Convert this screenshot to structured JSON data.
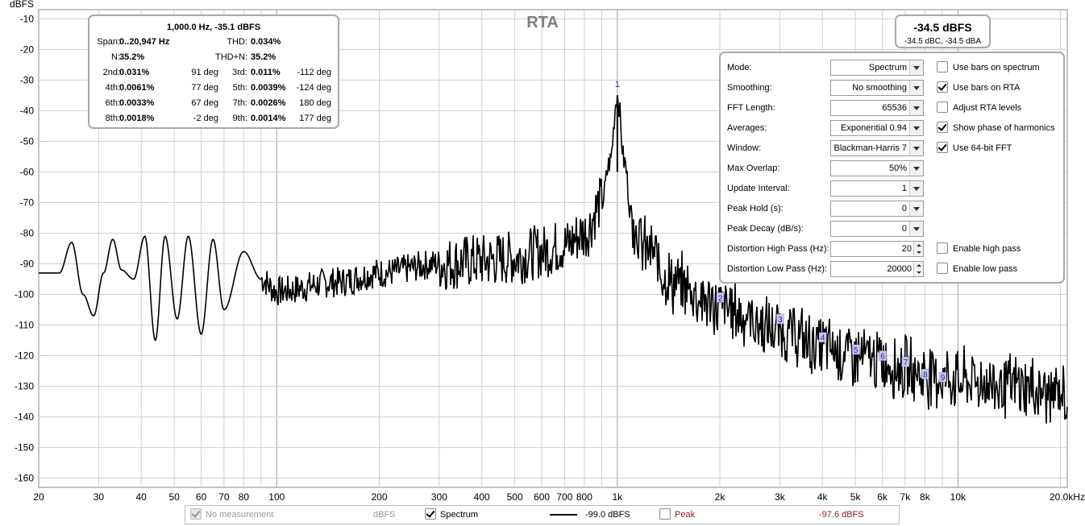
{
  "plot": {
    "title": "RTA",
    "y_unit": "dBFS",
    "y_ticks": [
      "-10",
      "-20",
      "-30",
      "-40",
      "-50",
      "-60",
      "-70",
      "-80",
      "-90",
      "-100",
      "-110",
      "-120",
      "-130",
      "-140",
      "-150",
      "-160"
    ],
    "x_ticks": [
      "20",
      "30",
      "40",
      "50",
      "60",
      "70",
      "80",
      "100",
      "200",
      "300",
      "400",
      "500",
      "600",
      "700",
      "800",
      "1k",
      "2k",
      "3k",
      "4k",
      "5k",
      "6k",
      "7k",
      "8k",
      "10k",
      "20.0kHz"
    ],
    "harmonic_markers": [
      "1",
      "2",
      "3",
      "4",
      "5",
      "6",
      "7",
      "8",
      "9"
    ],
    "trace_color": "#000000",
    "grid_color": "#d0d0d0",
    "title_color": "#808080"
  },
  "chart_data": {
    "type": "line",
    "title": "RTA",
    "xlabel": "",
    "ylabel": "dBFS",
    "xscale": "log",
    "xlim": [
      20,
      20947
    ],
    "ylim": [
      -163,
      -7
    ],
    "grid": true,
    "series": [
      {
        "name": "Spectrum",
        "x": [
          20,
          23,
          25,
          27,
          29,
          31,
          33,
          35,
          38,
          41,
          44,
          47,
          51,
          55,
          60,
          65,
          70,
          80,
          90,
          100,
          150,
          200,
          300,
          400,
          500,
          600,
          700,
          800,
          900,
          950,
          1000,
          1050,
          1100,
          1200,
          1500,
          2000,
          3000,
          4000,
          5000,
          6000,
          7000,
          8000,
          9000,
          10000,
          15000,
          20000
        ],
        "y": [
          -93,
          -93,
          -83,
          -100,
          -107,
          -93,
          -82,
          -92,
          -95,
          -81,
          -115,
          -81,
          -108,
          -81,
          -113,
          -82,
          -105,
          -86,
          -95,
          -99,
          -96,
          -93,
          -90,
          -89,
          -88,
          -86,
          -84,
          -80,
          -70,
          -57,
          -35,
          -57,
          -74,
          -85,
          -97,
          -104,
          -112,
          -117,
          -120,
          -122,
          -124,
          -126,
          -127,
          -128,
          -130,
          -133
        ]
      }
    ],
    "harmonics": [
      {
        "label": "1",
        "x": 1000,
        "y": -35.1
      },
      {
        "label": "2",
        "x": 2000,
        "y": -101
      },
      {
        "label": "3",
        "x": 3000,
        "y": -108
      },
      {
        "label": "4",
        "x": 4000,
        "y": -114
      },
      {
        "label": "5",
        "x": 5000,
        "y": -118
      },
      {
        "label": "6",
        "x": 6000,
        "y": -120
      },
      {
        "label": "7",
        "x": 7000,
        "y": -122
      },
      {
        "label": "8",
        "x": 8000,
        "y": -126
      },
      {
        "label": "9",
        "x": 9000,
        "y": -127
      }
    ]
  },
  "info": {
    "header": "1,000.0 Hz, -35.1 dBFS",
    "span_label": "Span:",
    "span_value": "0..20,947 Hz",
    "thd_label": "THD:",
    "thd_value": "0.034%",
    "n_label": "N:",
    "n_value": "35.2%",
    "thdn_label": "THD+N:",
    "thdn_value": "35.2%",
    "harmonics": [
      {
        "l1": "2nd:",
        "v1": "0.031%",
        "p1": "91 deg",
        "l2": "3rd:",
        "v2": "0.011%",
        "p2": "-112 deg"
      },
      {
        "l1": "4th:",
        "v1": "0.0061%",
        "p1": "77 deg",
        "l2": "5th:",
        "v2": "0.0039%",
        "p2": "-124 deg"
      },
      {
        "l1": "6th:",
        "v1": "0.0033%",
        "p1": "67 deg",
        "l2": "7th:",
        "v2": "0.0026%",
        "p2": "180 deg"
      },
      {
        "l1": "8th:",
        "v1": "0.0018%",
        "p1": "-2 deg",
        "l2": "9th:",
        "v2": "0.0014%",
        "p2": "177 deg"
      }
    ]
  },
  "level": {
    "main": "-34.5 dBFS",
    "sub": "-34.5 dBC, -34.5 dBA"
  },
  "settings": {
    "mode": {
      "label": "Mode:",
      "value": "Spectrum"
    },
    "smoothing": {
      "label": "Smoothing:",
      "value": "No  smoothing"
    },
    "fft_length": {
      "label": "FFT Length:",
      "value": "65536"
    },
    "averages": {
      "label": "Averages:",
      "value": "Exponential 0.94"
    },
    "window": {
      "label": "Window:",
      "value": "Blackman-Harris 7"
    },
    "max_overlap": {
      "label": "Max Overlap:",
      "value": "50%"
    },
    "update_interval": {
      "label": "Update Interval:",
      "value": "1"
    },
    "peak_hold": {
      "label": "Peak Hold (s):",
      "value": "0"
    },
    "peak_decay": {
      "label": "Peak Decay (dB/s):",
      "value": "0"
    },
    "dist_high": {
      "label": "Distortion High Pass (Hz):",
      "value": "20"
    },
    "dist_low": {
      "label": "Distortion Low Pass (Hz):",
      "value": "20000"
    },
    "checks": {
      "bars_spectrum": {
        "label": "Use bars on spectrum",
        "checked": false
      },
      "bars_rta": {
        "label": "Use bars on RTA",
        "checked": true
      },
      "adjust_rta": {
        "label": "Adjust RTA levels",
        "checked": false
      },
      "show_phase": {
        "label": "Show phase of harmonics",
        "checked": true
      },
      "fft64": {
        "label": "Use 64-bit FFT",
        "checked": true
      },
      "high_pass": {
        "label": "Enable high pass",
        "checked": false
      },
      "low_pass": {
        "label": "Enable low pass",
        "checked": false
      }
    }
  },
  "legend": {
    "no_measurement": "No measurement",
    "unit": "dBFS",
    "spectrum": "Spectrum",
    "spectrum_value": "-99.0 dBFS",
    "peak": "Peak",
    "peak_value": "-97.6 dBFS",
    "peak_color": "#8b1a1a",
    "disabled_color": "#999999"
  }
}
